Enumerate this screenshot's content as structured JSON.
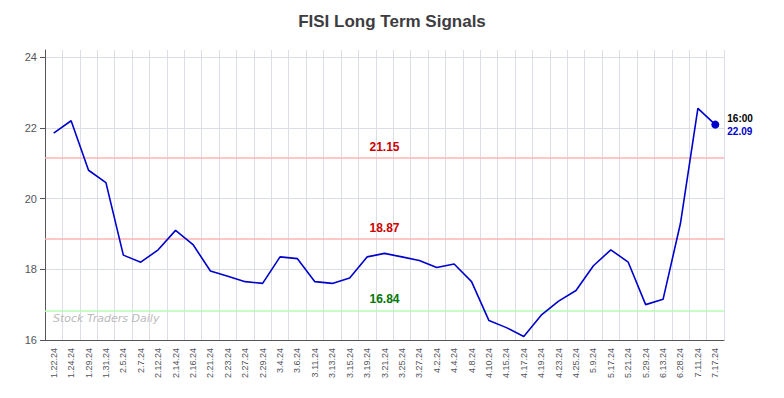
{
  "chart_data": {
    "type": "line",
    "title": "FISI Long Term Signals",
    "watermark": "Stock Traders Daily",
    "categories": [
      "1.22.24",
      "1.24.24",
      "1.29.24",
      "1.31.24",
      "2.5.24",
      "2.7.24",
      "2.12.24",
      "2.14.24",
      "2.16.24",
      "2.21.24",
      "2.23.24",
      "2.27.24",
      "2.29.24",
      "3.4.24",
      "3.6.24",
      "3.11.24",
      "3.13.24",
      "3.15.24",
      "3.19.24",
      "3.21.24",
      "3.25.24",
      "3.27.24",
      "4.2.24",
      "4.4.24",
      "4.8.24",
      "4.10.24",
      "4.15.24",
      "4.17.24",
      "4.19.24",
      "4.23.24",
      "4.25.24",
      "5.9.24",
      "5.17.24",
      "5.21.24",
      "5.29.24",
      "6.13.24",
      "6.28.24",
      "7.11.24",
      "7.17.24"
    ],
    "values": [
      21.85,
      22.2,
      20.8,
      20.45,
      18.4,
      18.2,
      18.55,
      19.1,
      18.7,
      17.95,
      17.8,
      17.65,
      17.6,
      18.35,
      18.3,
      17.65,
      17.6,
      17.75,
      18.35,
      18.45,
      18.35,
      18.25,
      18.05,
      18.15,
      17.65,
      16.55,
      16.35,
      16.1,
      16.7,
      17.1,
      17.4,
      18.1,
      18.55,
      18.2,
      17.0,
      17.15,
      19.3,
      22.55,
      22.09
    ],
    "color": "#0000cc",
    "hlines": [
      {
        "y": 21.15,
        "color": "#ffb3b3",
        "label": "21.15",
        "label_color": "#cc0000"
      },
      {
        "y": 18.87,
        "color": "#ffb3b3",
        "label": "18.87",
        "label_color": "#cc0000"
      },
      {
        "y": 16.84,
        "color": "#b3ffb3",
        "label": "16.84",
        "label_color": "#007700"
      }
    ],
    "last_point": {
      "y": 22.09,
      "time_label": "16:00",
      "value_label": "22.09",
      "color": "#0000cc"
    },
    "ylim": [
      16,
      24.2
    ],
    "yticks": [
      16,
      18,
      20,
      22,
      24
    ],
    "grid": true
  }
}
